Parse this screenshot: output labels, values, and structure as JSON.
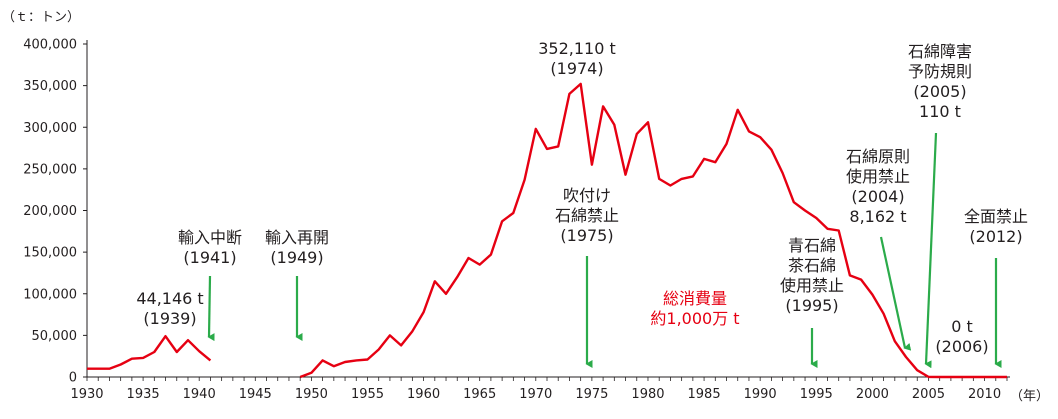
{
  "chart_data": {
    "type": "line",
    "unit_label": "（ｔ：トン）",
    "x_unit_label": "（年）",
    "xlim": [
      1930,
      2012
    ],
    "ylim": [
      0,
      400000
    ],
    "y_ticks": [
      0,
      50000,
      100000,
      150000,
      200000,
      250000,
      300000,
      350000,
      400000
    ],
    "y_tick_labels": [
      "0",
      "50,000",
      "100,000",
      "150,000",
      "200,000",
      "250,000",
      "300,000",
      "350,000",
      "400,000"
    ],
    "x_ticks": [
      1930,
      1935,
      1940,
      1945,
      1950,
      1955,
      1960,
      1965,
      1970,
      1975,
      1980,
      1985,
      1990,
      1995,
      2000,
      2005,
      2010
    ],
    "x_tick_labels": [
      "1930",
      "1935",
      "1940",
      "1945",
      "1950",
      "1955",
      "1960",
      "1965",
      "1970",
      "1975",
      "1980",
      "1985",
      "1990",
      "1995",
      "2000",
      "2005",
      "2010"
    ],
    "grid": false,
    "line_color": "#e60012",
    "arrow_color": "#2bab4a",
    "series_segments": [
      {
        "x": [
          1930,
          1931,
          1932,
          1933,
          1934,
          1935,
          1936,
          1937,
          1938,
          1939,
          1940,
          1941
        ],
        "y": [
          10000,
          10000,
          10000,
          15000,
          22000,
          23000,
          30000,
          49000,
          30000,
          44146,
          31000,
          20000
        ]
      },
      {
        "x": [
          1949,
          1950,
          1951,
          1952,
          1953,
          1954,
          1955,
          1956,
          1957,
          1958,
          1959,
          1960,
          1961,
          1962,
          1963,
          1964,
          1965,
          1966,
          1967,
          1968,
          1969,
          1970,
          1971,
          1972,
          1973,
          1974,
          1975,
          1976,
          1977,
          1978,
          1979,
          1980,
          1981,
          1982,
          1983,
          1984,
          1985,
          1986,
          1987,
          1988,
          1989,
          1990,
          1991,
          1992,
          1993,
          1994,
          1995,
          1996,
          1997,
          1998,
          1999,
          2000,
          2001,
          2002,
          2003,
          2004,
          2005,
          2006,
          2007,
          2008,
          2009,
          2010,
          2011,
          2012
        ],
        "y": [
          0,
          5000,
          20000,
          13000,
          18000,
          20000,
          21000,
          33000,
          50000,
          38000,
          55000,
          78000,
          115000,
          100000,
          120000,
          143000,
          135000,
          147000,
          187000,
          197000,
          237000,
          298000,
          274000,
          277000,
          340000,
          352110,
          255000,
          325000,
          303000,
          243000,
          292000,
          306000,
          238000,
          230000,
          238000,
          241000,
          262000,
          258000,
          280000,
          321000,
          295000,
          288000,
          273000,
          245000,
          210000,
          200000,
          191000,
          178000,
          176000,
          122000,
          117000,
          99000,
          76000,
          43000,
          24000,
          8162,
          110,
          0,
          0,
          0,
          0,
          0,
          0,
          0
        ]
      }
    ],
    "annotations": [
      {
        "lines": [
          "44,146 t",
          "(1939)"
        ],
        "arrow": false
      },
      {
        "lines": [
          "輸入中断",
          "(1941)"
        ],
        "arrow": true,
        "arrow_year": 1941
      },
      {
        "lines": [
          "輸入再開",
          "(1949)"
        ],
        "arrow": true,
        "arrow_year": 1949
      },
      {
        "lines": [
          "352,110 t",
          "(1974)"
        ],
        "arrow": false
      },
      {
        "lines": [
          "吹付け",
          "石綿禁止",
          "(1975)"
        ],
        "arrow": true,
        "arrow_year": 1975
      },
      {
        "lines": [
          "総消費量",
          "約1,000万 t"
        ],
        "arrow": false,
        "red": true
      },
      {
        "lines": [
          "青石綿",
          "茶石綿",
          "使用禁止",
          "(1995)"
        ],
        "arrow": true,
        "arrow_year": 1995
      },
      {
        "lines": [
          "石綿原則",
          "使用禁止",
          "(2004)",
          "8,162 t"
        ],
        "arrow": true,
        "arrow_year": 2004
      },
      {
        "lines": [
          "石綿障害",
          "予防規則",
          "(2005)",
          "110 t"
        ],
        "arrow": true,
        "arrow_year": 2005
      },
      {
        "lines": [
          "0 t",
          "(2006)"
        ],
        "arrow": false
      },
      {
        "lines": [
          "全面禁止",
          "(2012)"
        ],
        "arrow": true,
        "arrow_year": 2012
      }
    ]
  }
}
